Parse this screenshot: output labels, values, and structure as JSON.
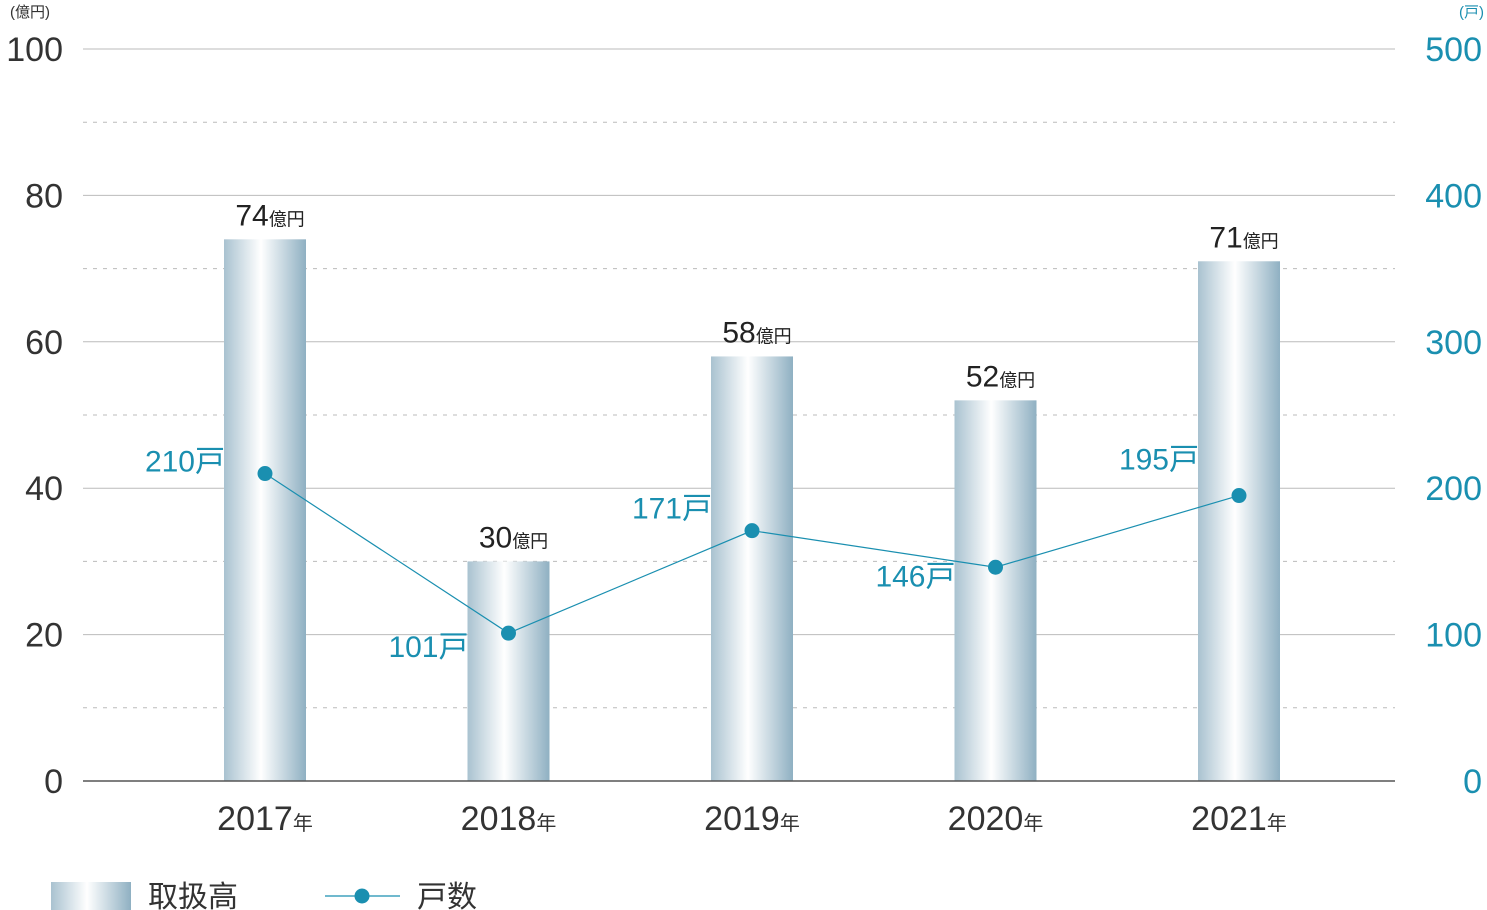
{
  "chart_data": {
    "type": "bar",
    "categories": [
      "2017",
      "2018",
      "2019",
      "2020",
      "2021"
    ],
    "category_suffix": "年",
    "series": [
      {
        "name": "取扱高",
        "type": "bar",
        "axis": "left",
        "values": [
          74,
          30,
          58,
          52,
          71
        ],
        "label_suffix": "億円"
      },
      {
        "name": "戸数",
        "type": "line",
        "axis": "right",
        "values": [
          210,
          101,
          171,
          146,
          195
        ],
        "label_suffix": "戸",
        "color": "#1a8fb0"
      }
    ],
    "y_left": {
      "unit": "(億円)",
      "range": [
        0,
        100
      ],
      "ticks": [
        0,
        20,
        40,
        60,
        80,
        100
      ]
    },
    "y_right": {
      "unit": "(戸)",
      "range": [
        0,
        500
      ],
      "ticks": [
        0,
        100,
        200,
        300,
        400,
        500
      ]
    },
    "grid": true,
    "legend_position": "bottom-left",
    "colors": {
      "line": "#1a8fb0",
      "bar_edge": "#8fb3c4",
      "bar_center": "#ffffff",
      "grid": "#bbbbbb",
      "axis": "#555555",
      "tick_right": "#1a8fb0"
    }
  }
}
